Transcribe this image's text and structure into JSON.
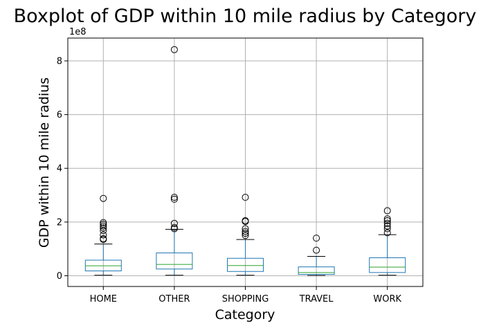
{
  "chart_data": {
    "type": "boxplot",
    "title": "Boxplot of GDP within 10 mile radius by Category",
    "xlabel": "Category",
    "ylabel": "GDP within 10 mile radius",
    "y_offset_label": "1e8",
    "ylim": [
      -0.4,
      8.85
    ],
    "yticks": [
      0,
      2,
      4,
      6,
      8
    ],
    "ytick_labels": [
      "0",
      "2",
      "4",
      "6",
      "8"
    ],
    "grid": true,
    "colors": {
      "box": "#1f77b4",
      "median": "#2ca02c",
      "whisker": "#1f77b4",
      "cap": "#000000",
      "grid": "#b0b0b0",
      "flier": "#000000"
    },
    "categories": [
      "HOME",
      "OTHER",
      "SHOPPING",
      "TRAVEL",
      "WORK"
    ],
    "boxes": [
      {
        "label": "HOME",
        "whislo": 0.02,
        "q1": 0.18,
        "med": 0.37,
        "q3": 0.58,
        "whishi": 1.18,
        "fliers": [
          1.35,
          1.38,
          1.52,
          1.68,
          1.78,
          1.85,
          1.92,
          1.98,
          2.88
        ]
      },
      {
        "label": "OTHER",
        "whislo": 0.02,
        "q1": 0.25,
        "med": 0.42,
        "q3": 0.85,
        "whishi": 1.73,
        "fliers": [
          1.75,
          1.8,
          1.95,
          2.85,
          2.92,
          8.42
        ]
      },
      {
        "label": "SHOPPING",
        "whislo": 0.02,
        "q1": 0.16,
        "med": 0.38,
        "q3": 0.65,
        "whishi": 1.35,
        "fliers": [
          1.5,
          1.58,
          1.65,
          1.75,
          2.02,
          2.05,
          2.92
        ]
      },
      {
        "label": "TRAVEL",
        "whislo": 0.01,
        "q1": 0.05,
        "med": 0.12,
        "q3": 0.33,
        "whishi": 0.72,
        "fliers": [
          0.95,
          1.4
        ]
      },
      {
        "label": "WORK",
        "whislo": 0.02,
        "q1": 0.12,
        "med": 0.32,
        "q3": 0.67,
        "whishi": 1.53,
        "fliers": [
          1.6,
          1.75,
          1.85,
          1.95,
          2.05,
          2.12,
          2.42
        ]
      }
    ]
  }
}
